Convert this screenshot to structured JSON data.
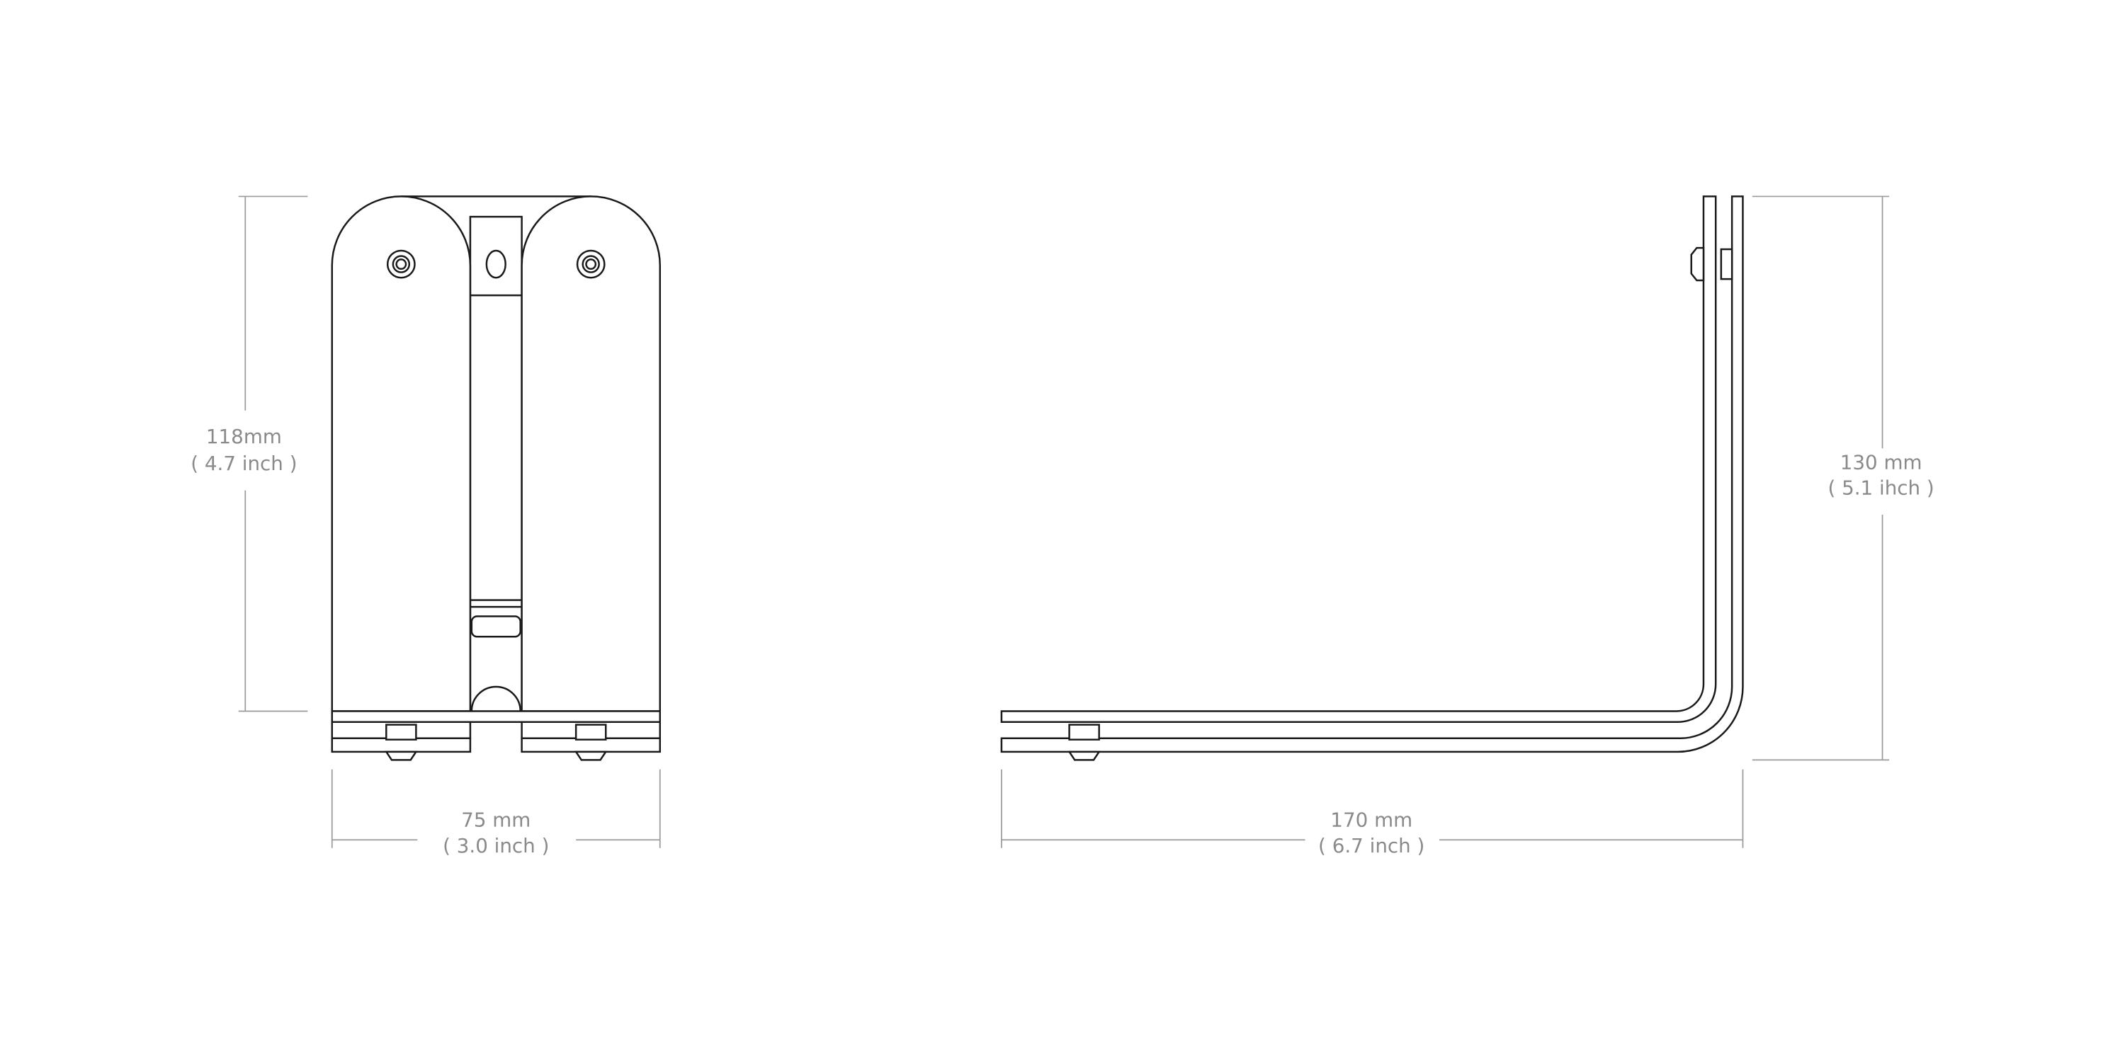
{
  "front_view": {
    "height_label": [
      "118mm",
      "( 4.7 inch )"
    ],
    "width_label": [
      "75 mm",
      "( 3.0 inch )"
    ]
  },
  "side_view": {
    "height_label": [
      "130 mm",
      "( 5.1 ihch )"
    ],
    "width_label": [
      "170 mm",
      "( 6.7 inch )"
    ]
  }
}
